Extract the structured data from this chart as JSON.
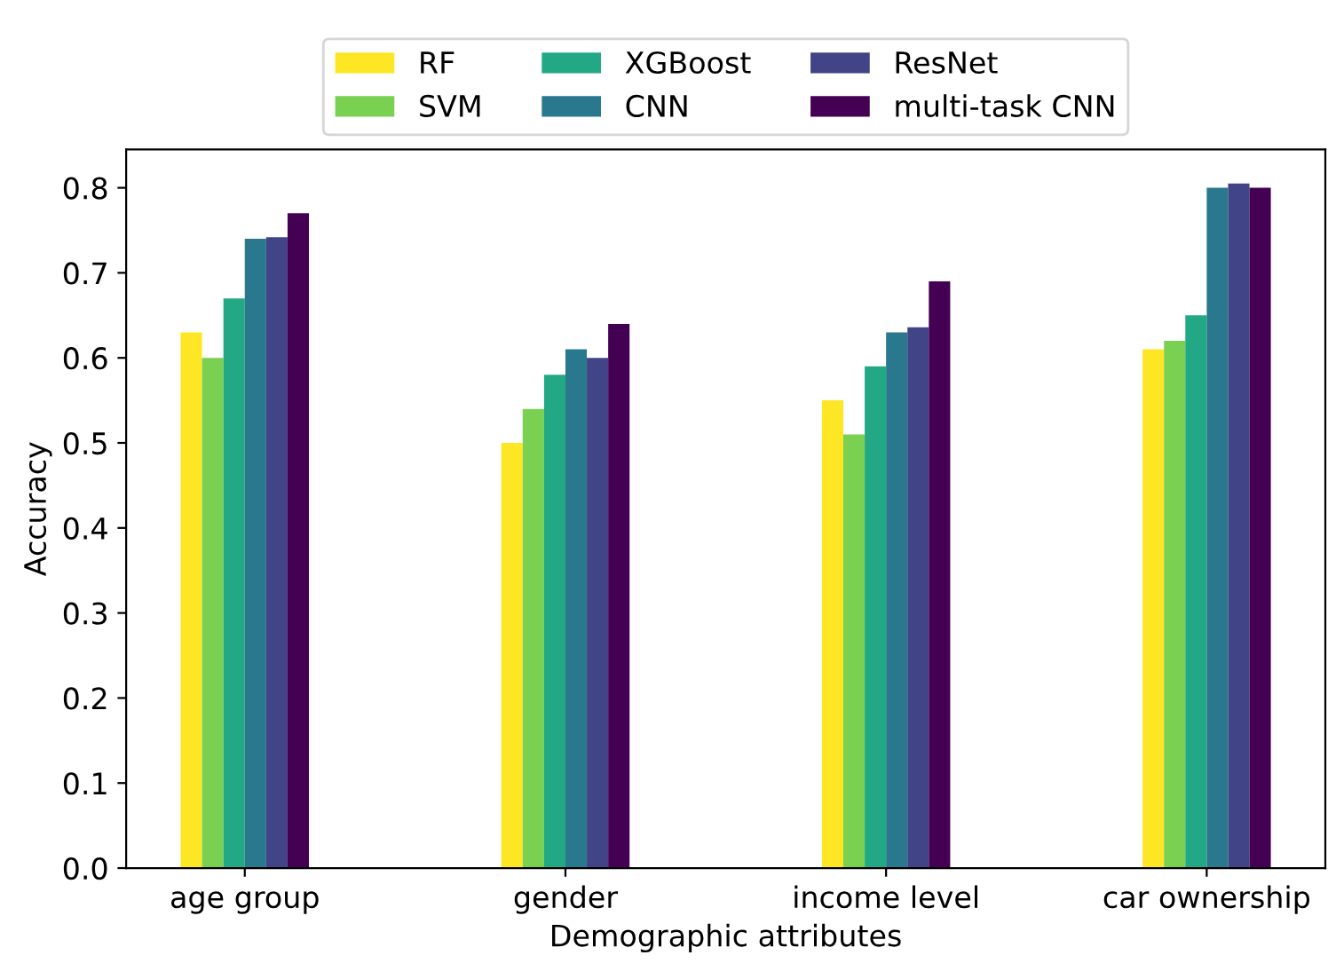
{
  "chart_data": {
    "type": "bar",
    "xlabel": "Demographic attributes",
    "ylabel": "Accuracy",
    "categories": [
      "age group",
      "gender",
      "income level",
      "car ownership"
    ],
    "series": [
      {
        "name": "RF",
        "color": "#fde725",
        "values": [
          0.63,
          0.5,
          0.55,
          0.61
        ]
      },
      {
        "name": "SVM",
        "color": "#7ad151",
        "values": [
          0.6,
          0.54,
          0.51,
          0.62
        ]
      },
      {
        "name": "XGBoost",
        "color": "#22a884",
        "values": [
          0.67,
          0.58,
          0.59,
          0.65
        ]
      },
      {
        "name": "CNN",
        "color": "#2a788e",
        "values": [
          0.74,
          0.61,
          0.63,
          0.8
        ]
      },
      {
        "name": "ResNet",
        "color": "#414487",
        "values": [
          0.742,
          0.6,
          0.636,
          0.805
        ]
      },
      {
        "name": "multi-task CNN",
        "color": "#440154",
        "values": [
          0.77,
          0.64,
          0.69,
          0.8
        ]
      }
    ],
    "ylim": [
      0,
      0.845
    ],
    "yticks": [
      {
        "value": 0,
        "label": "0.0"
      },
      0.1,
      0.2,
      0.3,
      0.4,
      0.5,
      0.6,
      0.7,
      0.8
    ],
    "legend": "top",
    "grid": false
  }
}
